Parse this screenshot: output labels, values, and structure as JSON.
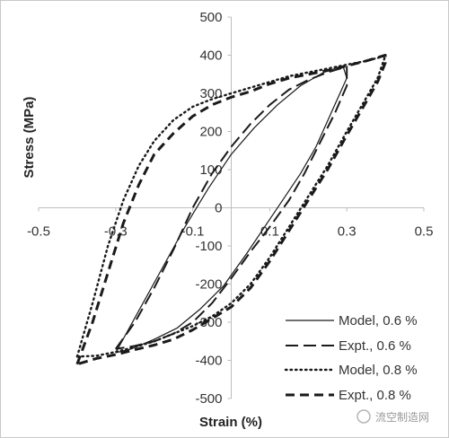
{
  "chart_data": {
    "type": "line",
    "xlabel": "Strain (%)",
    "ylabel": "Stress (MPa)",
    "xlim": [
      -0.5,
      0.5
    ],
    "ylim": [
      -500,
      500
    ],
    "x_ticks": [
      "-0.5",
      "-0.3",
      "-0.1",
      "0.1",
      "0.3",
      "0.5"
    ],
    "y_ticks": [
      "500",
      "400",
      "300",
      "200",
      "100",
      "0",
      "-100",
      "-200",
      "-300",
      "-400",
      "-500"
    ],
    "grid": false,
    "legend_position": "bottom-right",
    "series": [
      {
        "name": "Model, 0.6 %",
        "style": "solid",
        "x": [
          -0.3,
          -0.24,
          -0.18,
          -0.12,
          -0.06,
          0.0,
          0.06,
          0.12,
          0.18,
          0.24,
          0.29,
          0.3,
          0.26,
          0.22,
          0.18,
          0.14,
          0.1,
          0.04,
          -0.02,
          -0.08,
          -0.14,
          -0.2,
          -0.26,
          -0.3
        ],
        "y": [
          -380,
          -270,
          -160,
          -50,
          50,
          140,
          210,
          270,
          320,
          355,
          372,
          340,
          250,
          160,
          90,
          30,
          -30,
          -120,
          -205,
          -265,
          -315,
          -345,
          -370,
          -380
        ]
      },
      {
        "name": "Expt., 0.6 %",
        "style": "dash-long",
        "x": [
          -0.3,
          -0.25,
          -0.2,
          -0.15,
          -0.1,
          -0.05,
          0.0,
          0.05,
          0.1,
          0.15,
          0.2,
          0.25,
          0.3,
          0.3,
          0.27,
          0.23,
          0.19,
          0.15,
          0.1,
          0.05,
          0.0,
          -0.05,
          -0.1,
          -0.15,
          -0.2,
          -0.25,
          -0.3
        ],
        "y": [
          -370,
          -300,
          -210,
          -110,
          0,
          90,
          160,
          220,
          270,
          310,
          335,
          355,
          370,
          320,
          250,
          170,
          90,
          20,
          -50,
          -115,
          -185,
          -250,
          -300,
          -330,
          -350,
          -362,
          -370
        ]
      },
      {
        "name": "Model, 0.8 %",
        "style": "dotted",
        "x": [
          -0.4,
          -0.36,
          -0.32,
          -0.28,
          -0.24,
          -0.2,
          -0.15,
          -0.1,
          -0.05,
          0.0,
          0.05,
          0.1,
          0.15,
          0.2,
          0.25,
          0.3,
          0.35,
          0.4,
          0.38,
          0.34,
          0.3,
          0.25,
          0.2,
          0.15,
          0.1,
          0.05,
          0.0,
          -0.05,
          -0.1,
          -0.15,
          -0.2,
          -0.25,
          -0.3,
          -0.35,
          -0.4
        ],
        "y": [
          -390,
          -250,
          -100,
          20,
          110,
          175,
          230,
          265,
          285,
          300,
          315,
          330,
          345,
          355,
          365,
          375,
          385,
          398,
          340,
          270,
          200,
          110,
          30,
          -50,
          -130,
          -200,
          -250,
          -285,
          -310,
          -330,
          -350,
          -365,
          -378,
          -388,
          -390
        ]
      },
      {
        "name": "Expt., 0.8 %",
        "style": "dash-short",
        "x": [
          -0.4,
          -0.36,
          -0.32,
          -0.28,
          -0.24,
          -0.2,
          -0.15,
          -0.1,
          -0.05,
          0.0,
          0.05,
          0.1,
          0.15,
          0.2,
          0.25,
          0.3,
          0.35,
          0.4,
          0.4,
          0.38,
          0.34,
          0.3,
          0.25,
          0.2,
          0.15,
          0.1,
          0.05,
          0.0,
          -0.05,
          -0.1,
          -0.15,
          -0.2,
          -0.25,
          -0.3,
          -0.35,
          -0.4
        ],
        "y": [
          -410,
          -300,
          -170,
          -40,
          60,
          140,
          195,
          240,
          270,
          290,
          305,
          325,
          340,
          350,
          360,
          372,
          385,
          400,
          380,
          330,
          260,
          190,
          100,
          20,
          -60,
          -140,
          -210,
          -260,
          -290,
          -320,
          -345,
          -360,
          -372,
          -385,
          -395,
          -410
        ]
      }
    ]
  },
  "watermark": "流空制造网"
}
